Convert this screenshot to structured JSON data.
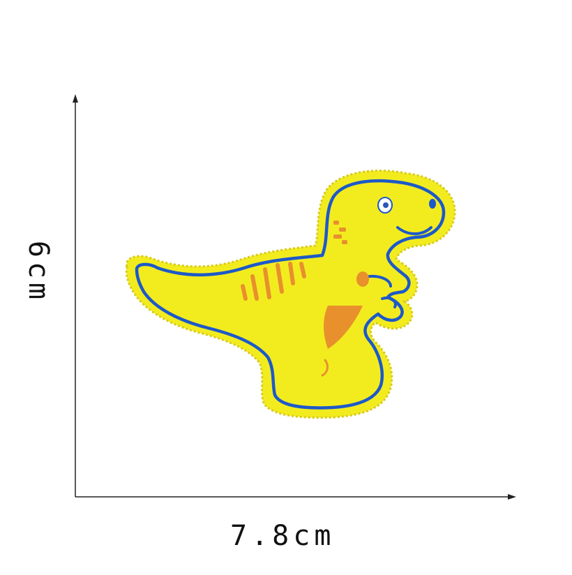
{
  "dimensions": {
    "width_label": "7.8cm",
    "height_label": "6cm"
  },
  "patch": {
    "subject": "dinosaur-patch",
    "colors": {
      "felt": "#f2ec1f",
      "felt_shade": "#e6df17",
      "border_stitch": "#d8ca1c",
      "outline": "#1d59c9",
      "stripes": "#e8902c",
      "eye_white": "#ffffff",
      "eye_pupil": "#2a55b8"
    }
  },
  "axes_color": "#222222"
}
